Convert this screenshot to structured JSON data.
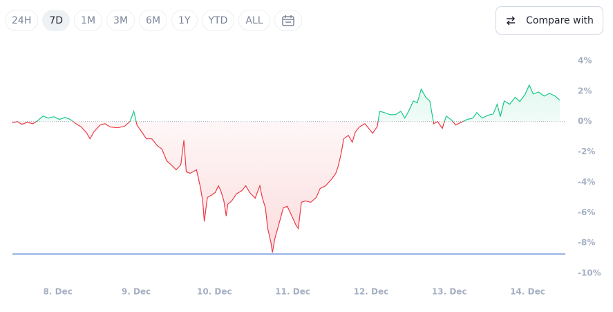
{
  "toolbar": {
    "ranges": [
      "24H",
      "7D",
      "1M",
      "3M",
      "6M",
      "1Y",
      "YTD",
      "ALL"
    ],
    "selected": 1,
    "compare": "Compare with"
  },
  "chart_data": {
    "type": "line",
    "x": [
      7.42,
      7.48,
      7.54,
      7.61,
      7.68,
      7.74,
      7.81,
      7.88,
      7.95,
      8.02,
      8.09,
      8.16,
      8.23,
      8.3,
      8.37,
      8.41,
      8.46,
      8.54,
      8.6,
      8.67,
      8.76,
      8.85,
      8.92,
      8.97,
      9.01,
      9.07,
      9.13,
      9.2,
      9.27,
      9.33,
      9.39,
      9.45,
      9.51,
      9.57,
      9.61,
      9.64,
      9.69,
      9.77,
      9.82,
      9.85,
      9.87,
      9.91,
      9.96,
      10.01,
      10.05,
      10.08,
      10.12,
      10.15,
      10.17,
      10.22,
      10.28,
      10.35,
      10.4,
      10.45,
      10.52,
      10.58,
      10.61,
      10.65,
      10.68,
      10.72,
      10.74,
      10.77,
      10.82,
      10.88,
      10.93,
      10.98,
      11.04,
      11.07,
      11.11,
      11.16,
      11.23,
      11.3,
      11.35,
      11.42,
      11.5,
      11.55,
      11.58,
      11.62,
      11.65,
      11.71,
      11.76,
      11.8,
      11.85,
      11.92,
      11.97,
      12.02,
      12.08,
      12.11,
      12.17,
      12.24,
      12.31,
      12.38,
      12.43,
      12.48,
      12.54,
      12.59,
      12.64,
      12.7,
      12.75,
      12.8,
      12.85,
      12.91,
      12.96,
      13.03,
      13.08,
      13.15,
      13.23,
      13.3,
      13.35,
      13.42,
      13.49,
      13.56,
      13.61,
      13.65,
      13.7,
      13.77,
      13.84,
      13.9,
      13.97,
      14.02,
      14.07,
      14.14,
      14.21,
      14.28,
      14.35,
      14.41
    ],
    "values": [
      -0.09,
      0,
      -0.18,
      -0.05,
      -0.14,
      0.05,
      0.36,
      0.23,
      0.32,
      0.14,
      0.27,
      0.14,
      -0.14,
      -0.36,
      -0.77,
      -1.14,
      -0.68,
      -0.23,
      -0.14,
      -0.36,
      -0.41,
      -0.32,
      0,
      0.68,
      -0.23,
      -0.68,
      -1.14,
      -1.14,
      -1.59,
      -1.82,
      -2.59,
      -2.86,
      -3.18,
      -2.86,
      -1.23,
      -3.32,
      -3.41,
      -3.18,
      -4.32,
      -5.23,
      -6.59,
      -5.0,
      -4.86,
      -4.68,
      -4.23,
      -4.55,
      -5.23,
      -6.23,
      -5.45,
      -5.23,
      -4.77,
      -4.55,
      -4.23,
      -4.68,
      -5.05,
      -4.23,
      -5.0,
      -5.68,
      -7.05,
      -7.95,
      -8.64,
      -7.73,
      -6.82,
      -5.68,
      -5.59,
      -6.14,
      -6.82,
      -7.05,
      -5.32,
      -5.23,
      -5.32,
      -5.0,
      -4.41,
      -4.23,
      -3.77,
      -3.41,
      -2.95,
      -2.05,
      -1.14,
      -0.91,
      -1.36,
      -0.68,
      -0.36,
      -0.14,
      -0.45,
      -0.77,
      -0.32,
      0.68,
      0.59,
      0.45,
      0.45,
      0.68,
      0.23,
      0.68,
      1.36,
      1.23,
      2.14,
      1.59,
      1.36,
      -0.14,
      0,
      -0.45,
      0.36,
      0.09,
      -0.23,
      -0.05,
      0.14,
      0.23,
      0.59,
      0.23,
      0.41,
      0.5,
      1.14,
      0.32,
      1.36,
      1.14,
      1.59,
      1.32,
      1.82,
      2.41,
      1.82,
      1.95,
      1.68,
      1.86,
      1.68,
      1.41
    ],
    "positive_color": "#16c784",
    "negative_color": "#ea3943",
    "hline": {
      "value": -8.73,
      "color": "#4f7fd1"
    },
    "xlim": [
      7.42,
      14.41
    ],
    "ylim": [
      -10,
      4
    ],
    "xticks": [
      {
        "value": 8,
        "label": "8. Dec"
      },
      {
        "value": 9,
        "label": "9. Dec"
      },
      {
        "value": 10,
        "label": "10. Dec"
      },
      {
        "value": 11,
        "label": "11. Dec"
      },
      {
        "value": 12,
        "label": "12. Dec"
      },
      {
        "value": 13,
        "label": "13. Dec"
      },
      {
        "value": 14,
        "label": "14. Dec"
      }
    ],
    "yticks": [
      {
        "value": 4,
        "label": "4%"
      },
      {
        "value": 2,
        "label": "2%"
      },
      {
        "value": 0,
        "label": "0%"
      },
      {
        "value": -2,
        "label": "-2%"
      },
      {
        "value": -4,
        "label": "-4%"
      },
      {
        "value": -6,
        "label": "-6%"
      },
      {
        "value": -8,
        "label": "-8%"
      },
      {
        "value": -10,
        "label": "-10%"
      }
    ]
  }
}
